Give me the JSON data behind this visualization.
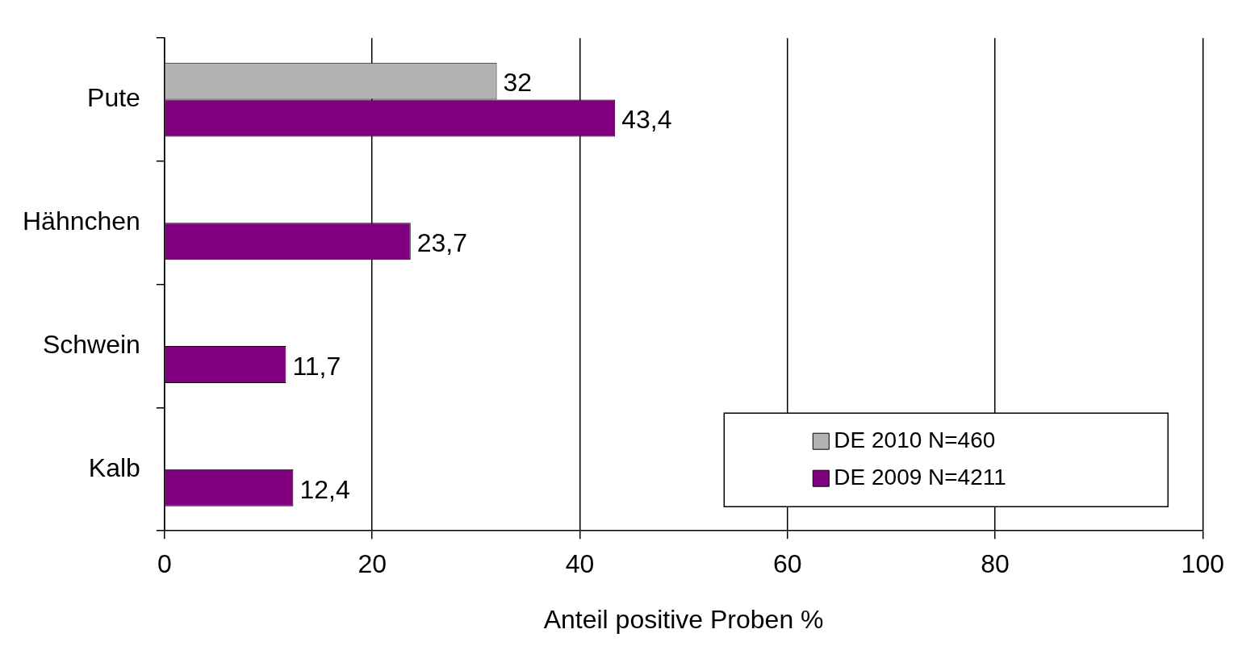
{
  "chart_data": {
    "type": "bar",
    "orientation": "horizontal",
    "xlabel": "Anteil positive Proben %",
    "categories": [
      "Pute",
      "Hähnchen",
      "Schwein",
      "Kalb"
    ],
    "series": [
      {
        "name": "DE 2010 N=460",
        "color": "#b2b2b2",
        "values": [
          32,
          null,
          null,
          null
        ],
        "value_labels": [
          "32",
          null,
          null,
          null
        ]
      },
      {
        "name": "DE 2009 N=4211",
        "color": "#800080",
        "values": [
          43.4,
          23.7,
          11.7,
          12.4
        ],
        "value_labels": [
          "43,4",
          "23,7",
          "11,7",
          "12,4"
        ]
      }
    ],
    "xlim": [
      0,
      100
    ],
    "xticks": [
      0,
      20,
      40,
      60,
      80,
      100
    ],
    "grid": "x",
    "legend": "bottom right"
  }
}
